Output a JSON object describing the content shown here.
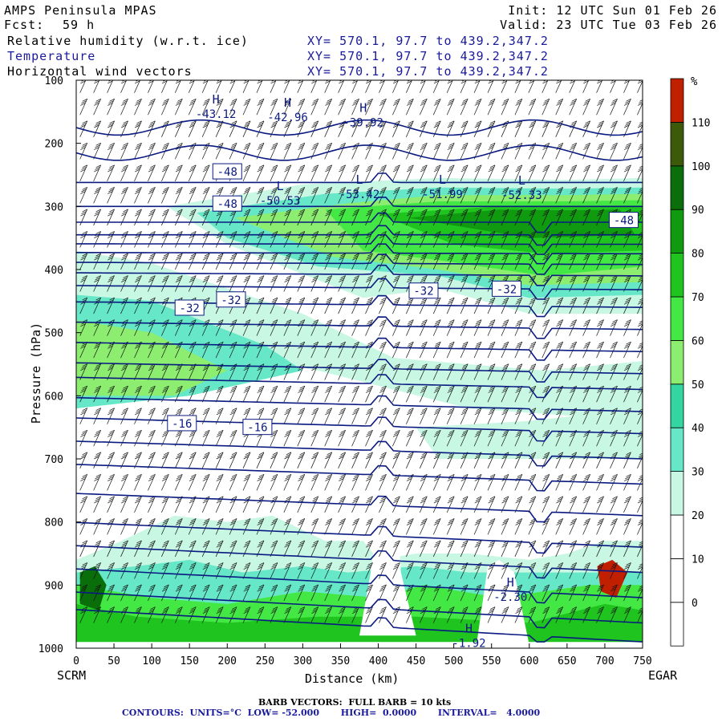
{
  "header": {
    "model": "AMPS Peninsula MPAS",
    "fcst_label": "Fcst:",
    "fcst_value": "59 h",
    "init": "Init: 12 UTC Sun 01 Feb 26",
    "valid": "Valid: 23 UTC Tue 03 Feb 26",
    "fields": [
      {
        "name": "Relative humidity (w.r.t. ice)",
        "xy": "XY= 570.1, 97.7 to 439.2,347.2"
      },
      {
        "name": "Temperature",
        "xy": "XY= 570.1, 97.7 to 439.2,347.2"
      },
      {
        "name": "Horizontal wind vectors",
        "xy": "XY= 570.1, 97.7 to 439.2,347.2"
      }
    ]
  },
  "footer": {
    "barb": "BARB VECTORS:  FULL BARB = 10 kts",
    "contours": "CONTOURS:  UNITS=°C  LOW= -52.000       HIGH=  0.0000       INTERVAL=   4.0000"
  },
  "chart_data": {
    "type": "heatmap",
    "title": "",
    "xlabel": "Distance (km)",
    "ylabel": "Pressure (hPa)",
    "x_ticks": [
      0,
      50,
      100,
      150,
      200,
      250,
      300,
      350,
      400,
      450,
      500,
      550,
      600,
      650,
      700,
      750
    ],
    "y_ticks": [
      100,
      200,
      300,
      400,
      500,
      600,
      700,
      800,
      900,
      1000
    ],
    "xlim": [
      0,
      750
    ],
    "ylim": [
      1000,
      100
    ],
    "left_endpoint": "SCRM",
    "right_endpoint": "EGAR",
    "colorbar": {
      "unit": "%",
      "levels": [
        0,
        10,
        20,
        30,
        40,
        50,
        60,
        70,
        80,
        90,
        100,
        110
      ],
      "colors": [
        "#ffffff",
        "#ffffff",
        "#ffffff",
        "#c8f7e4",
        "#66e8c8",
        "#33d6a0",
        "#8ced70",
        "#44e844",
        "#1fc41f",
        "#0f9a0f",
        "#0a6e0a",
        "#3c5a0a",
        "#c02000"
      ]
    },
    "contour_labels": [
      {
        "text": "-48",
        "x": 200,
        "p": 245
      },
      {
        "text": "-48",
        "x": 200,
        "p": 296
      },
      {
        "text": "-48",
        "x": 725,
        "p": 322
      },
      {
        "text": "-32",
        "x": 150,
        "p": 461
      },
      {
        "text": "-32",
        "x": 205,
        "p": 448
      },
      {
        "text": "-32",
        "x": 460,
        "p": 434
      },
      {
        "text": "-32",
        "x": 570,
        "p": 431
      },
      {
        "text": "-16",
        "x": 140,
        "p": 644
      },
      {
        "text": "-16",
        "x": 240,
        "p": 650
      }
    ],
    "extrema": [
      {
        "type": "H",
        "value": "-43.12",
        "x": 185,
        "p": 160
      },
      {
        "type": "H",
        "value": "-42.96",
        "x": 280,
        "p": 165
      },
      {
        "type": "H",
        "value": "-39.92",
        "x": 380,
        "p": 173
      },
      {
        "type": "L",
        "value": "-50.53",
        "x": 270,
        "p": 297
      },
      {
        "type": "L",
        "value": "-53.42",
        "x": 375,
        "p": 287
      },
      {
        "type": "L",
        "value": "-51.99",
        "x": 485,
        "p": 287
      },
      {
        "type": "L",
        "value": "-52.33",
        "x": 590,
        "p": 288
      },
      {
        "type": "H",
        "value": "-1.92",
        "x": 520,
        "p": 998
      },
      {
        "type": "H",
        "value": "-2.30",
        "x": 575,
        "p": 925
      }
    ]
  }
}
